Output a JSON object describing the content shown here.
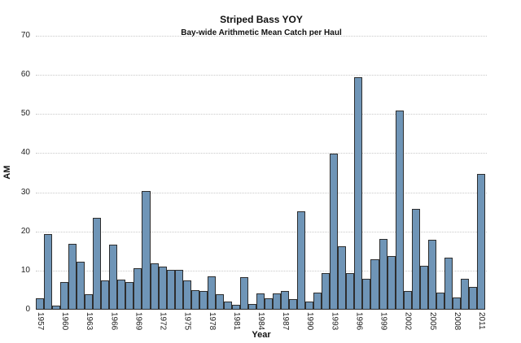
{
  "chart_data": {
    "type": "bar",
    "title": "Striped Bass YOY",
    "subtitle": "Bay-wide Arithmetic Mean Catch per Haul",
    "xlabel": "Year",
    "ylabel": "AM",
    "x": [
      1957,
      1958,
      1959,
      1960,
      1961,
      1962,
      1963,
      1964,
      1965,
      1966,
      1967,
      1968,
      1969,
      1970,
      1971,
      1972,
      1973,
      1974,
      1975,
      1976,
      1977,
      1978,
      1979,
      1980,
      1981,
      1982,
      1983,
      1984,
      1985,
      1986,
      1987,
      1988,
      1989,
      1990,
      1991,
      1992,
      1993,
      1994,
      1995,
      1996,
      1997,
      1998,
      1999,
      2000,
      2001,
      2002,
      2003,
      2004,
      2005,
      2006,
      2007,
      2008,
      2009,
      2010,
      2011
    ],
    "values": [
      2.9,
      19.4,
      1.0,
      7.0,
      16.9,
      12.3,
      4.0,
      23.5,
      7.4,
      16.7,
      7.6,
      7.1,
      10.5,
      30.4,
      11.8,
      11.1,
      10.1,
      10.1,
      7.5,
      4.9,
      4.8,
      8.5,
      4.0,
      2.0,
      1.2,
      8.4,
      1.4,
      4.2,
      2.9,
      4.1,
      4.8,
      2.7,
      25.2,
      2.1,
      4.4,
      9.3,
      39.8,
      16.2,
      9.3,
      59.4,
      7.9,
      12.8,
      18.0,
      13.8,
      50.8,
      4.7,
      25.8,
      11.3,
      17.8,
      4.3,
      13.4,
      3.2,
      7.9,
      5.9,
      34.6
    ],
    "ylim": [
      0,
      70
    ],
    "yticks": [
      0,
      10,
      20,
      30,
      40,
      50,
      60,
      70
    ],
    "xticks": [
      1957,
      1960,
      1963,
      1966,
      1969,
      1972,
      1975,
      1978,
      1981,
      1984,
      1987,
      1990,
      1993,
      1996,
      1999,
      2002,
      2005,
      2008,
      2011
    ],
    "grid": "horizontal-dotted",
    "legend_position": "none",
    "colors": {
      "bar_fill": "#6f95b7",
      "bar_stroke": "#2e2e2e",
      "gridline": "#c9c9c9",
      "text": "#1a1a1a",
      "background": "#ffffff"
    }
  }
}
